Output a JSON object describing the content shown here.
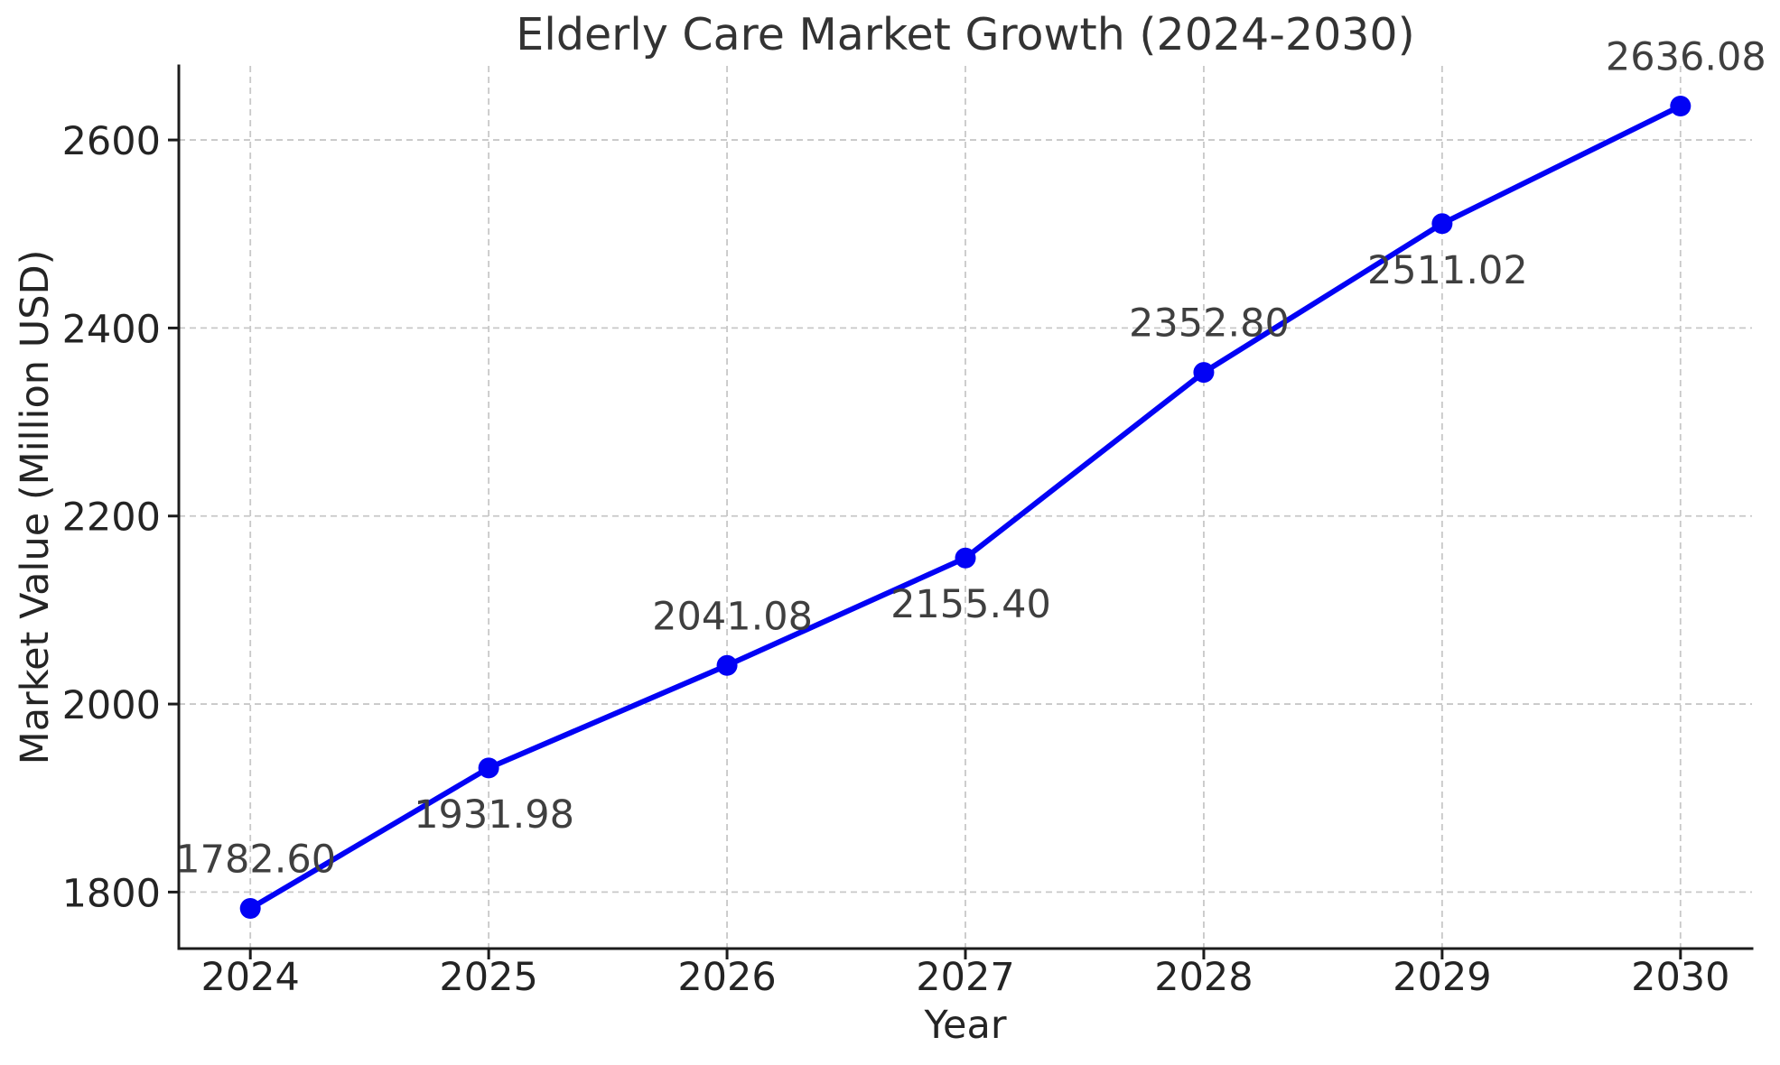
{
  "chart_data": {
    "type": "line",
    "title": "Elderly Care Market Growth (2024-2030)",
    "xlabel": "Year",
    "ylabel": "Market Value (Million USD)",
    "x": [
      2024,
      2025,
      2026,
      2027,
      2028,
      2029,
      2030
    ],
    "y": [
      1782.6,
      1931.98,
      2041.08,
      2155.4,
      2352.8,
      2511.02,
      2636.08
    ],
    "point_labels": [
      "1782.60",
      "1931.98",
      "2041.08",
      "2155.40",
      "2352.80",
      "2511.02",
      "2636.08"
    ],
    "x_tick_labels": [
      "2024",
      "2025",
      "2026",
      "2027",
      "2028",
      "2029",
      "2030"
    ],
    "y_ticks": [
      1800,
      2000,
      2200,
      2400,
      2600
    ],
    "y_tick_labels": [
      "1800",
      "2000",
      "2200",
      "2400",
      "2600"
    ],
    "xlim": [
      2023.7,
      2030.3
    ],
    "ylim": [
      1739.9,
      2678.8
    ],
    "grid": true,
    "grid_style": "dashed",
    "legend_position": "none",
    "series_name": "Market Value",
    "colors": {
      "line": "#0202f5",
      "marker": "#0202f5",
      "grid": "#c8c8c8",
      "spine": "#1c1c1c",
      "tick_text": "#242424",
      "title_text": "#333333",
      "annotation_text": "#3f3f3f",
      "background": "#ffffff"
    }
  }
}
